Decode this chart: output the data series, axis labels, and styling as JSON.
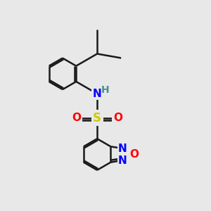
{
  "background_color": "#e8e8e8",
  "bond_color": "#1a1a1a",
  "N_color": "#0000ff",
  "O_color": "#ff0000",
  "S_color": "#cccc00",
  "H_color": "#4a9090",
  "font_size_atom": 11,
  "line_width": 1.8,
  "dbo": 0.055,
  "xlim": [
    -2.8,
    2.8
  ],
  "ylim": [
    -2.8,
    2.2
  ]
}
